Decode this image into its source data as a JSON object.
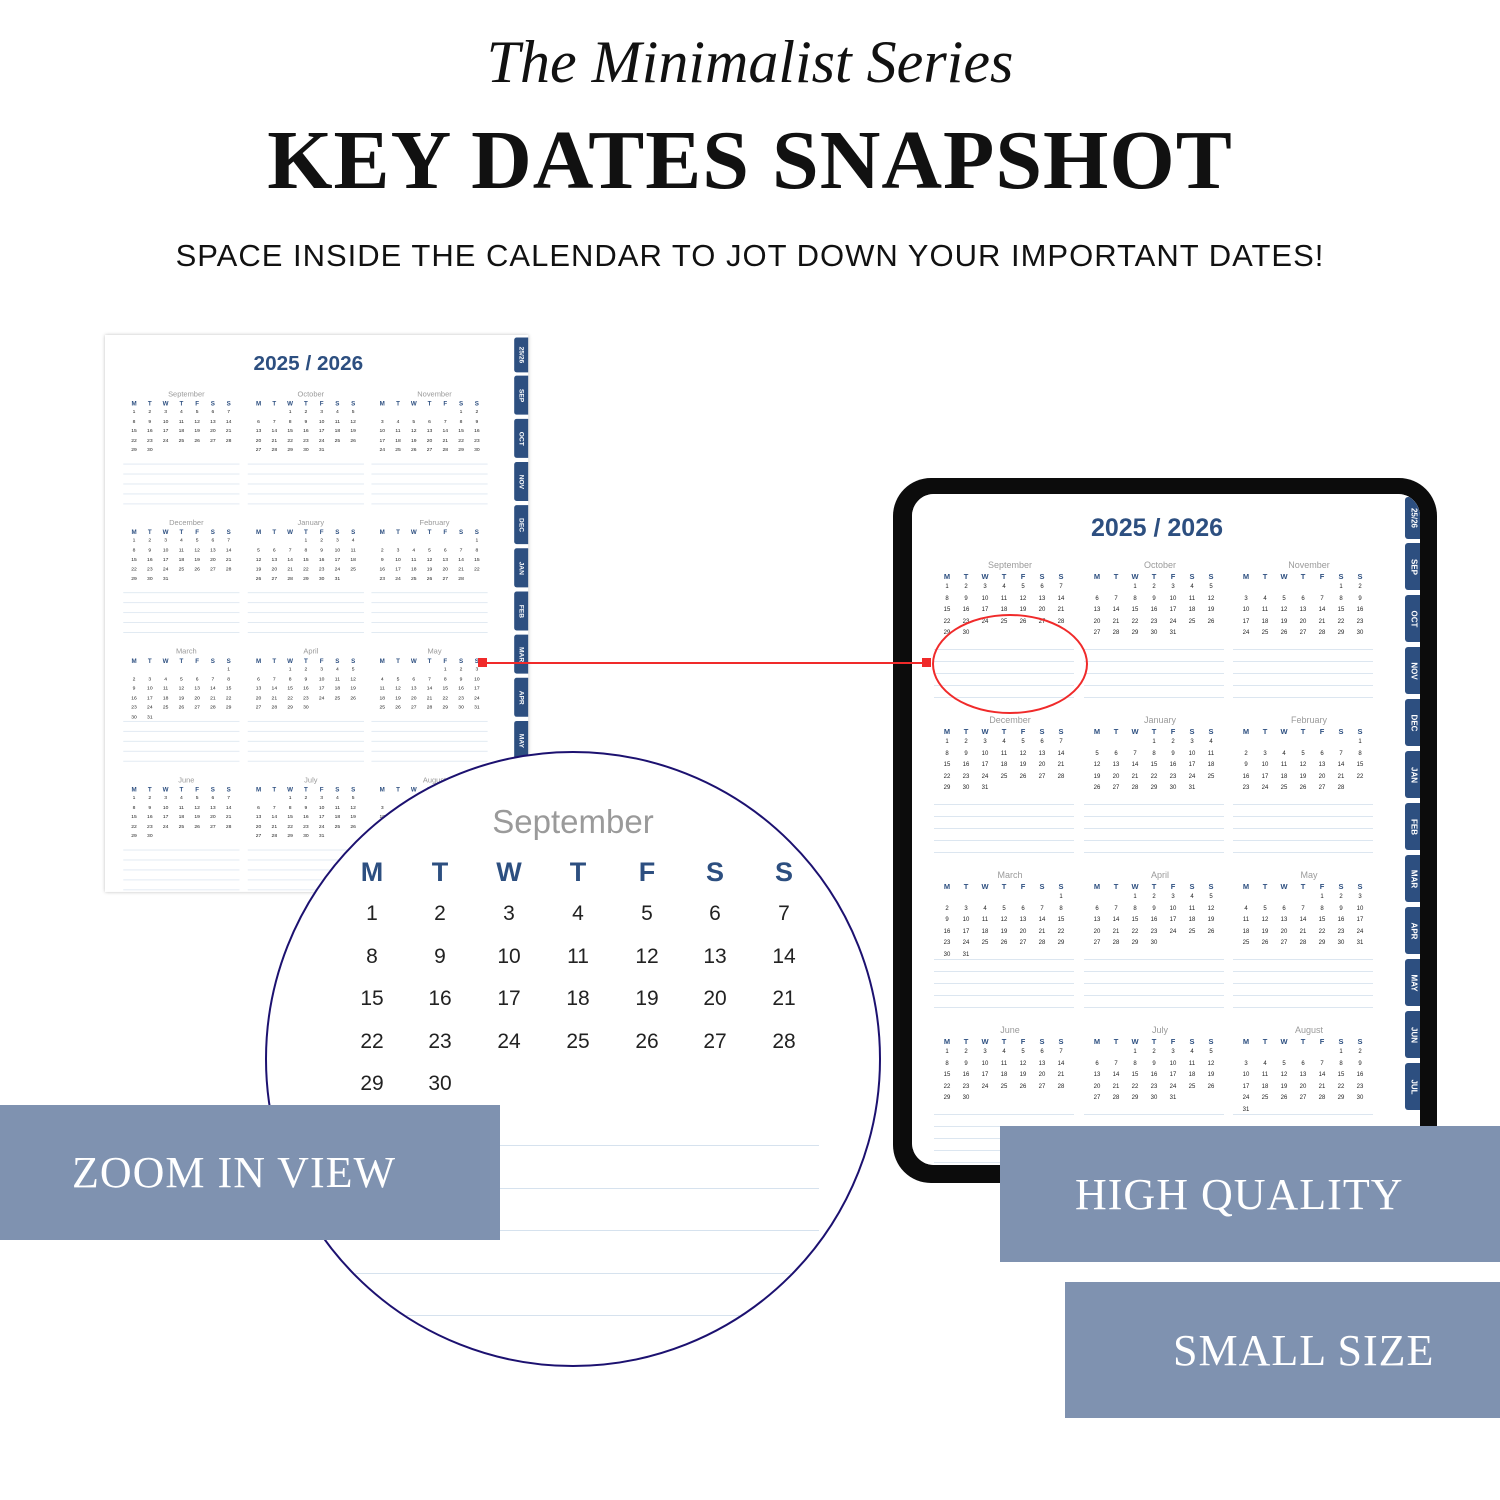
{
  "header": {
    "series": "The Minimalist Series",
    "title": "KEY DATES SNAPSHOT",
    "subtitle": "SPACE INSIDE THE CALENDAR TO JOT DOWN YOUR IMPORTANT DATES!"
  },
  "calendar": {
    "title": "2025 / 2026",
    "weekdays": [
      "M",
      "T",
      "W",
      "T",
      "F",
      "S",
      "S"
    ],
    "months": [
      {
        "name": "September",
        "start": 0,
        "days": 30
      },
      {
        "name": "October",
        "start": 2,
        "days": 31
      },
      {
        "name": "November",
        "start": 5,
        "days": 30
      },
      {
        "name": "December",
        "start": 0,
        "days": 31
      },
      {
        "name": "January",
        "start": 3,
        "days": 31
      },
      {
        "name": "February",
        "start": 6,
        "days": 28
      },
      {
        "name": "March",
        "start": 6,
        "days": 31
      },
      {
        "name": "April",
        "start": 2,
        "days": 30
      },
      {
        "name": "May",
        "start": 4,
        "days": 31
      },
      {
        "name": "June",
        "start": 0,
        "days": 30
      },
      {
        "name": "July",
        "start": 2,
        "days": 31
      },
      {
        "name": "August",
        "start": 5,
        "days": 31
      }
    ],
    "tabs": [
      "25/26",
      "SEP",
      "OCT",
      "NOV",
      "DEC",
      "JAN",
      "FEB",
      "MAR",
      "APR",
      "MAY",
      "JUN",
      "JUL"
    ]
  },
  "zoom_view": {
    "month_index": 0
  },
  "banners": {
    "zoom": "ZOOM IN VIEW",
    "quality": "HIGH QUALITY",
    "size": "SMALL SIZE"
  },
  "colors": {
    "accent": "#2d4f80",
    "banner": "#7f92b0",
    "highlight": "#f02a2a",
    "circle_border": "#1c1170"
  }
}
